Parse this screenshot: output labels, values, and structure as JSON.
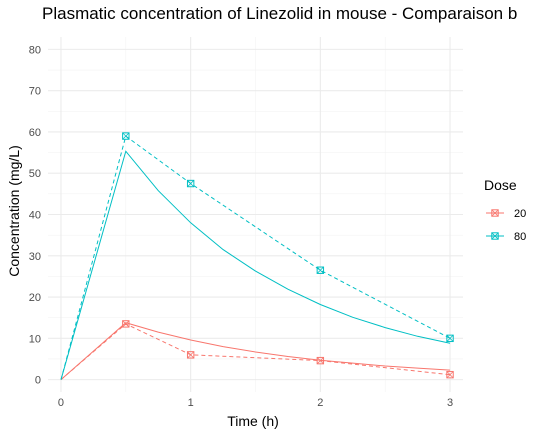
{
  "chart_data": {
    "type": "line",
    "title": "Plasmatic concentration of Linezolid in mouse - Comparaison b",
    "xlabel": "Time (h)",
    "ylabel": "Concentration (mg/L)",
    "xlim": [
      -0.1,
      3.1
    ],
    "ylim": [
      -3,
      83
    ],
    "x_ticks": [
      0,
      1,
      2,
      3
    ],
    "x_tick_labels": [
      "0",
      "1",
      "2",
      "3"
    ],
    "y_ticks": [
      0,
      10,
      20,
      30,
      40,
      50,
      60,
      70,
      80
    ],
    "y_tick_labels": [
      "0",
      "10",
      "20",
      "30",
      "40",
      "50",
      "60",
      "70",
      "80"
    ],
    "grid": true,
    "legend": {
      "title": "Dose",
      "placement": "right",
      "entries": [
        "20",
        "80"
      ]
    },
    "series": [
      {
        "name": "20",
        "color": "#F8766D",
        "model_curve": {
          "x": [
            0,
            0.5,
            0.75,
            1.0,
            1.25,
            1.5,
            1.75,
            2.0,
            2.25,
            2.5,
            2.75,
            3.0
          ],
          "y": [
            0,
            13.8,
            11.5,
            9.6,
            8.0,
            6.7,
            5.6,
            4.7,
            4.0,
            3.3,
            2.8,
            2.3
          ]
        },
        "observed": {
          "x": [
            0.5,
            1.0,
            2.0,
            3.0
          ],
          "y": [
            13.5,
            6.0,
            4.6,
            1.2
          ]
        }
      },
      {
        "name": "80",
        "color": "#00BFC4",
        "model_curve": {
          "x": [
            0,
            0.5,
            0.75,
            1.0,
            1.25,
            1.5,
            1.75,
            2.0,
            2.25,
            2.5,
            2.75,
            3.0
          ],
          "y": [
            0,
            55.3,
            45.8,
            38.0,
            31.5,
            26.3,
            21.9,
            18.2,
            15.1,
            12.6,
            10.5,
            8.8
          ]
        },
        "observed": {
          "x": [
            0.5,
            1.0,
            2.0,
            3.0
          ],
          "y": [
            59.0,
            47.5,
            26.5,
            10.0
          ]
        }
      }
    ]
  }
}
